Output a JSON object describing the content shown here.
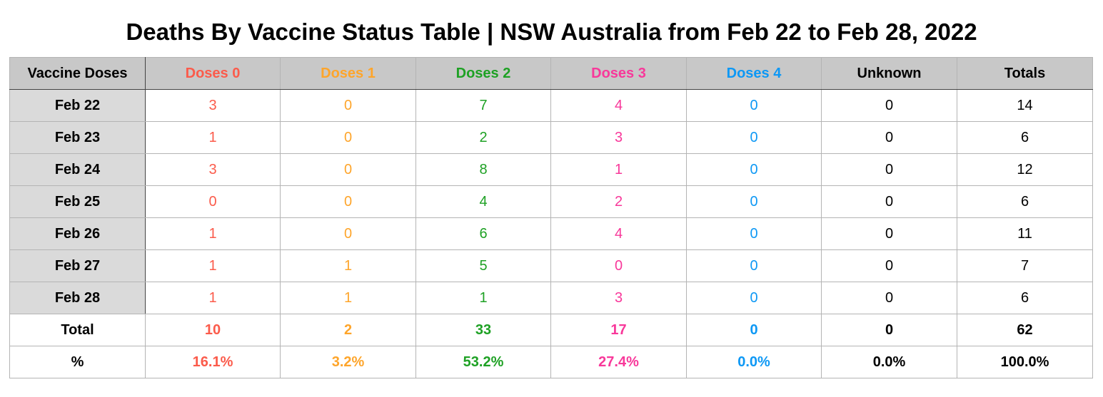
{
  "title": "Deaths By Vaccine Status Table | NSW Australia from Feb 22 to Feb 28, 2022",
  "colors": {
    "doses0": "#fb5b4b",
    "doses1": "#fea52b",
    "doses2": "#1ea124",
    "doses3": "#f8389a",
    "doses4": "#0d98f5",
    "unknown": "#000000",
    "totals": "#000000"
  },
  "chart_data": {
    "type": "table",
    "title": "Deaths By Vaccine Status Table | NSW Australia from Feb 22 to Feb 28, 2022",
    "corner_header": "Vaccine Doses",
    "columns": [
      {
        "key": "doses0",
        "label": "Doses 0"
      },
      {
        "key": "doses1",
        "label": "Doses 1"
      },
      {
        "key": "doses2",
        "label": "Doses 2"
      },
      {
        "key": "doses3",
        "label": "Doses 3"
      },
      {
        "key": "doses4",
        "label": "Doses 4"
      },
      {
        "key": "unknown",
        "label": "Unknown"
      },
      {
        "key": "totals",
        "label": "Totals"
      }
    ],
    "rows": [
      {
        "label": "Feb 22",
        "values": [
          3,
          0,
          7,
          4,
          0,
          0,
          14
        ]
      },
      {
        "label": "Feb 23",
        "values": [
          1,
          0,
          2,
          3,
          0,
          0,
          6
        ]
      },
      {
        "label": "Feb 24",
        "values": [
          3,
          0,
          8,
          1,
          0,
          0,
          12
        ]
      },
      {
        "label": "Feb 25",
        "values": [
          0,
          0,
          4,
          2,
          0,
          0,
          6
        ]
      },
      {
        "label": "Feb 26",
        "values": [
          1,
          0,
          6,
          4,
          0,
          0,
          11
        ]
      },
      {
        "label": "Feb 27",
        "values": [
          1,
          1,
          5,
          0,
          0,
          0,
          7
        ]
      },
      {
        "label": "Feb 28",
        "values": [
          1,
          1,
          1,
          3,
          0,
          0,
          6
        ]
      }
    ],
    "summary_rows": [
      {
        "label": "Total",
        "values": [
          "10",
          "2",
          "33",
          "17",
          "0",
          "0",
          "62"
        ]
      },
      {
        "label": "%",
        "values": [
          "16.1%",
          "3.2%",
          "53.2%",
          "27.4%",
          "0.0%",
          "0.0%",
          "100.0%"
        ]
      }
    ]
  }
}
